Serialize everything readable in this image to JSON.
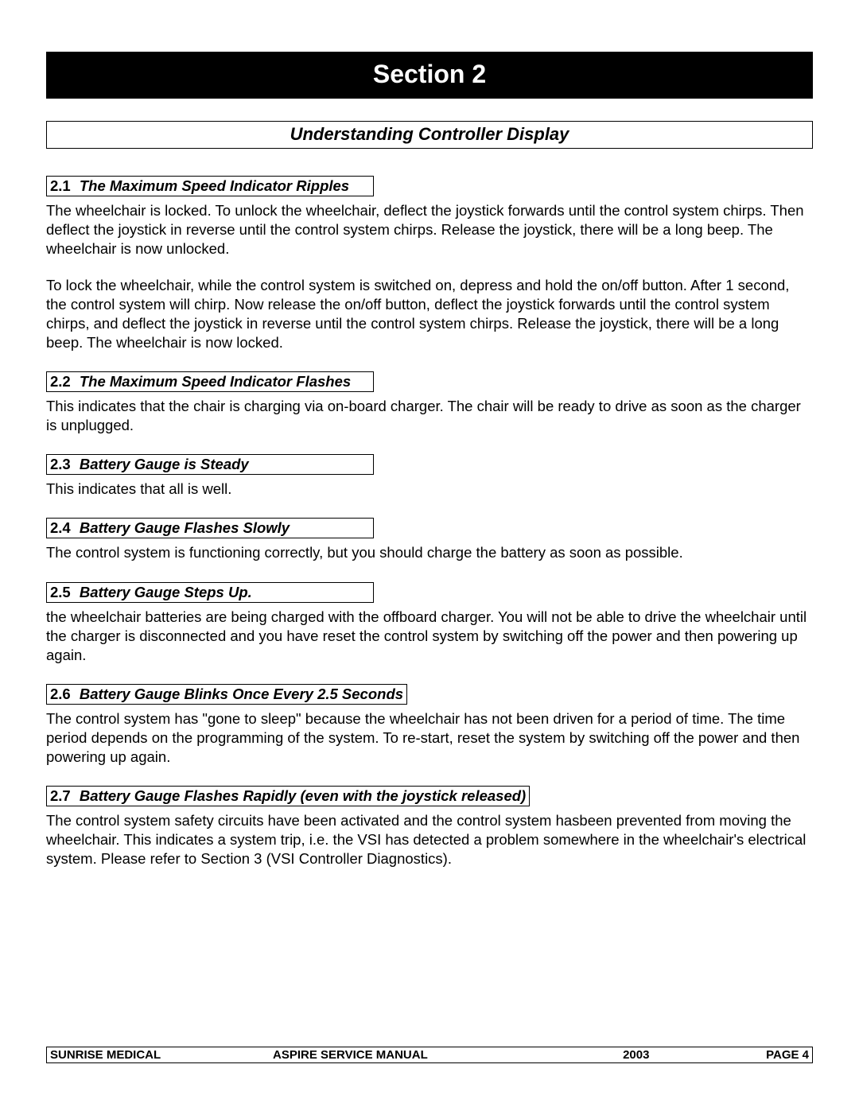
{
  "header": {
    "section_label": "Section 2"
  },
  "main_title": "Understanding Controller Display",
  "subsections": {
    "s21": {
      "num": "2.1",
      "title": "The Maximum Speed Indicator Ripples",
      "p1": "The wheelchair is locked.  To unlock the wheelchair, deflect the joystick forwards until the control system chirps.  Then deflect the joystick in reverse until the control system chirps.  Release the joystick, there will be a long beep.  The wheelchair is now  unlocked.",
      "p2": "To lock the wheelchair, while the control system is switched on, depress and hold the on/off button. After  1 second, the control system will chirp.  Now  release the on/off button, deflect the joystick forwards until the control system chirps, and deflect the joystick in reverse until the control system chirps.  Release the joystick, there will be a long beep.  The wheelchair is now locked."
    },
    "s22": {
      "num": "2.2",
      "title": "The Maximum Speed Indicator Flashes",
      "p1": "This indicates that the chair is charging via on-board charger.  The chair will be ready to drive as soon as  the charger is unplugged."
    },
    "s23": {
      "num": "2.3",
      "title": "Battery Gauge is Steady",
      "p1": "This indicates that all is well."
    },
    "s24": {
      "num": "2.4",
      "title": "Battery Gauge Flashes Slowly",
      "p1": "The control system is functioning correctly, but you should charge the battery as soon as possible."
    },
    "s25": {
      "num": "2.5",
      "title": "Battery Gauge Steps Up.",
      "p1": "the wheelchair batteries are being charged with the offboard charger. You will not be able to drive the wheelchair until the charger is disconnected and you have reset the control system by switching off the power and then powering up again."
    },
    "s26": {
      "num": "2.6",
      "title": "Battery Gauge Blinks Once Every 2.5 Seconds",
      "p1": "The control system has \"gone to sleep\" because the wheelchair has not been driven for a period of time.  The time period depends on the programming of the system. To re-start, reset the system by switching off the power and then powering up again."
    },
    "s27": {
      "num": "2.7",
      "title": "Battery Gauge Flashes Rapidly (even with the joystick released)",
      "p1": "The control system safety circuits have been activated and the control system hasbeen prevented from moving the wheelchair.  This indicates a system trip, i.e. the VSI has detected a problem somewhere in the wheelchair's electrical system. Please refer to Section 3 (VSI Controller Diagnostics)."
    }
  },
  "footer": {
    "left": "SUNRISE  MEDICAL",
    "center": "ASPIRE SERVICE  MANUAL",
    "year": "2003",
    "right": "PAGE   4"
  }
}
